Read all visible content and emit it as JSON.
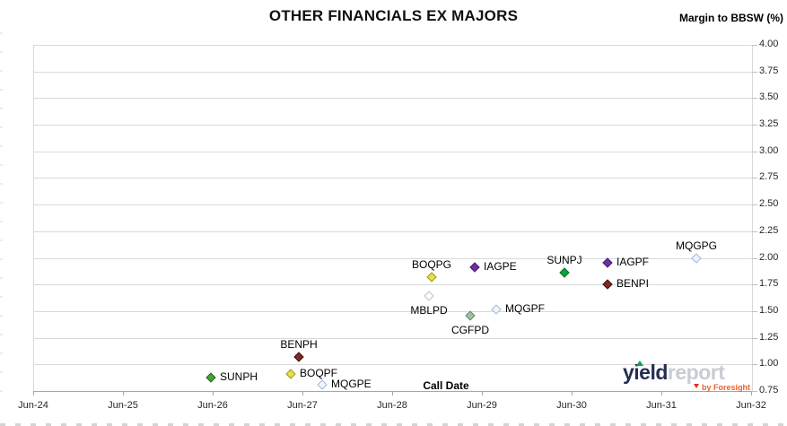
{
  "title": "OTHER FINANCIALS EX MAJORS",
  "y_axis_title": "Margin to BBSW (%)",
  "x_axis_title": "Call Date",
  "logo": {
    "part1": "yield",
    "part2": "report",
    "byline": "by Foresight",
    "accent_green": "#00a651",
    "accent_orange": "#e8612c",
    "navy": "#242e54",
    "gray": "#c8cdd4"
  },
  "chart_data": {
    "type": "scatter",
    "title": "OTHER FINANCIALS EX MAJORS",
    "xlabel": "Call Date",
    "ylabel": "Margin to BBSW (%)",
    "x_ticks": [
      "Jun-24",
      "Jun-25",
      "Jun-26",
      "Jun-27",
      "Jun-28",
      "Jun-29",
      "Jun-30",
      "Jun-31",
      "Jun-32"
    ],
    "y_ticks": [
      "4.00",
      "3.75",
      "3.50",
      "3.25",
      "3.00",
      "2.75",
      "2.50",
      "2.25",
      "2.00",
      "1.75",
      "1.50",
      "1.25",
      "1.00",
      "0.75"
    ],
    "ylim": [
      0.75,
      4.0
    ],
    "xlim_years_after_jun24": [
      0,
      8
    ],
    "grid": "horizontal-only",
    "legend": "none",
    "axis_side": "right",
    "gridline_color": "#d9d9d9",
    "axis_line_color": "#a6a6a6",
    "points": [
      {
        "id": "SUNPH",
        "x": 1.98,
        "y": 0.88,
        "label_pos": "right",
        "fill": "#48a23c",
        "border": "#27691f"
      },
      {
        "id": "BOQPF",
        "x": 2.87,
        "y": 0.91,
        "label_pos": "right",
        "fill": "#e7e243",
        "border": "#98952c"
      },
      {
        "id": "BENPH",
        "x": 2.96,
        "y": 1.07,
        "label_pos": "above",
        "fill": "#7c2b25",
        "border": "#3f110d"
      },
      {
        "id": "MQGPE",
        "x": 3.22,
        "y": 0.81,
        "label_pos": "right",
        "fill": "#f2f6fb",
        "border": "#9db4da"
      },
      {
        "id": "MBLPD",
        "x": 4.41,
        "y": 1.64,
        "label_pos": "below",
        "fill": "#fdfdfe",
        "border": "#b4bdca"
      },
      {
        "id": "BOQPG",
        "x": 4.44,
        "y": 1.82,
        "label_pos": "above",
        "fill": "#e7e243",
        "border": "#98952c"
      },
      {
        "id": "CGFPD",
        "x": 4.87,
        "y": 1.46,
        "label_pos": "below",
        "fill": "#a9c180",
        "border": "#5181b8"
      },
      {
        "id": "IAGPE",
        "x": 4.92,
        "y": 1.91,
        "label_pos": "right",
        "fill": "#6f2fa0",
        "border": "#471d68"
      },
      {
        "id": "MQGPF",
        "x": 5.16,
        "y": 1.52,
        "label_pos": "right",
        "fill": "#f2f6fb",
        "border": "#9db4da"
      },
      {
        "id": "SUNPJ",
        "x": 5.92,
        "y": 1.86,
        "label_pos": "above",
        "fill": "#00a83c",
        "border": "#006b26"
      },
      {
        "id": "IAGPF",
        "x": 6.4,
        "y": 1.95,
        "label_pos": "right",
        "fill": "#6f2fa0",
        "border": "#471d68"
      },
      {
        "id": "BENPI",
        "x": 6.4,
        "y": 1.75,
        "label_pos": "right",
        "fill": "#7c2b25",
        "border": "#3f110d"
      },
      {
        "id": "MQGPG",
        "x": 7.39,
        "y": 2.0,
        "label_pos": "above",
        "fill": "#f2f6fb",
        "border": "#9db4da"
      }
    ]
  }
}
